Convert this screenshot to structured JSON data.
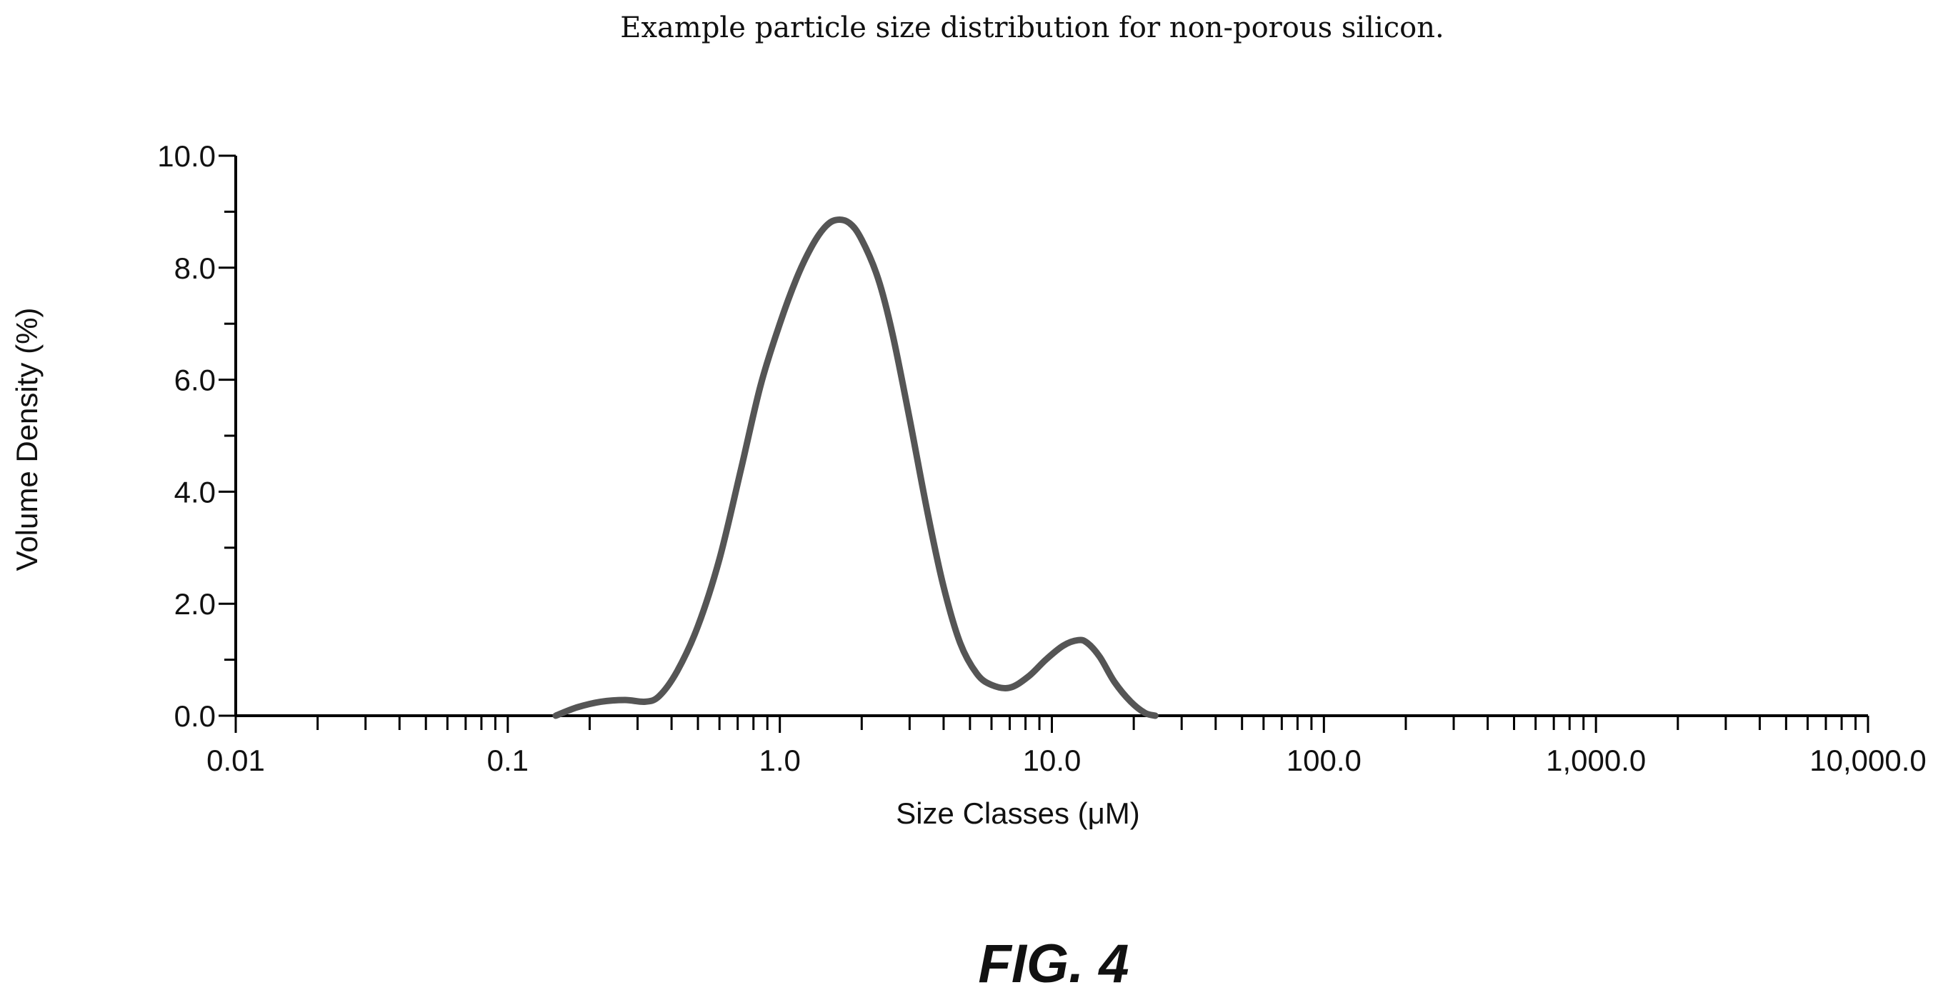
{
  "chart_data": {
    "type": "line",
    "title": "Example particle size distribution for non-porous silicon.",
    "xlabel": "Size Classes (μM)",
    "ylabel": "Volume Density (%)",
    "xscale": "log",
    "xlim": [
      0.01,
      10000
    ],
    "ylim": [
      0,
      10
    ],
    "x_ticks": [
      {
        "value": 0.01,
        "label": "0.01"
      },
      {
        "value": 0.1,
        "label": "0.1"
      },
      {
        "value": 1,
        "label": "1.0"
      },
      {
        "value": 10,
        "label": "10.0"
      },
      {
        "value": 100,
        "label": "100.0"
      },
      {
        "value": 1000,
        "label": "1,000.0"
      },
      {
        "value": 10000,
        "label": "10,000.0"
      }
    ],
    "y_ticks": [
      {
        "value": 0,
        "label": "0.0"
      },
      {
        "value": 2,
        "label": "2.0"
      },
      {
        "value": 4,
        "label": "4.0"
      },
      {
        "value": 6,
        "label": "6.0"
      },
      {
        "value": 8,
        "label": "8.0"
      },
      {
        "value": 10,
        "label": "10.0"
      }
    ],
    "grid": false,
    "series": [
      {
        "x": [
          0.15,
          0.18,
          0.22,
          0.27,
          0.32,
          0.36,
          0.42,
          0.5,
          0.6,
          0.72,
          0.85,
          1.0,
          1.15,
          1.3,
          1.45,
          1.6,
          1.8,
          2.0,
          2.3,
          2.6,
          3.0,
          3.5,
          4.0,
          4.6,
          5.3,
          6.0,
          7.0,
          8.2,
          9.5,
          11.0,
          12.5,
          13.5,
          15.0,
          17.0,
          19.5,
          22.0,
          24.0
        ],
        "y": [
          0.0,
          0.15,
          0.25,
          0.28,
          0.25,
          0.35,
          0.8,
          1.6,
          2.8,
          4.4,
          5.9,
          7.0,
          7.8,
          8.35,
          8.7,
          8.85,
          8.8,
          8.5,
          7.8,
          6.8,
          5.3,
          3.6,
          2.3,
          1.3,
          0.75,
          0.55,
          0.5,
          0.7,
          1.0,
          1.25,
          1.35,
          1.3,
          1.05,
          0.6,
          0.25,
          0.05,
          0.0
        ],
        "color": "#555555"
      }
    ]
  },
  "figure_label": "FIG. 4"
}
